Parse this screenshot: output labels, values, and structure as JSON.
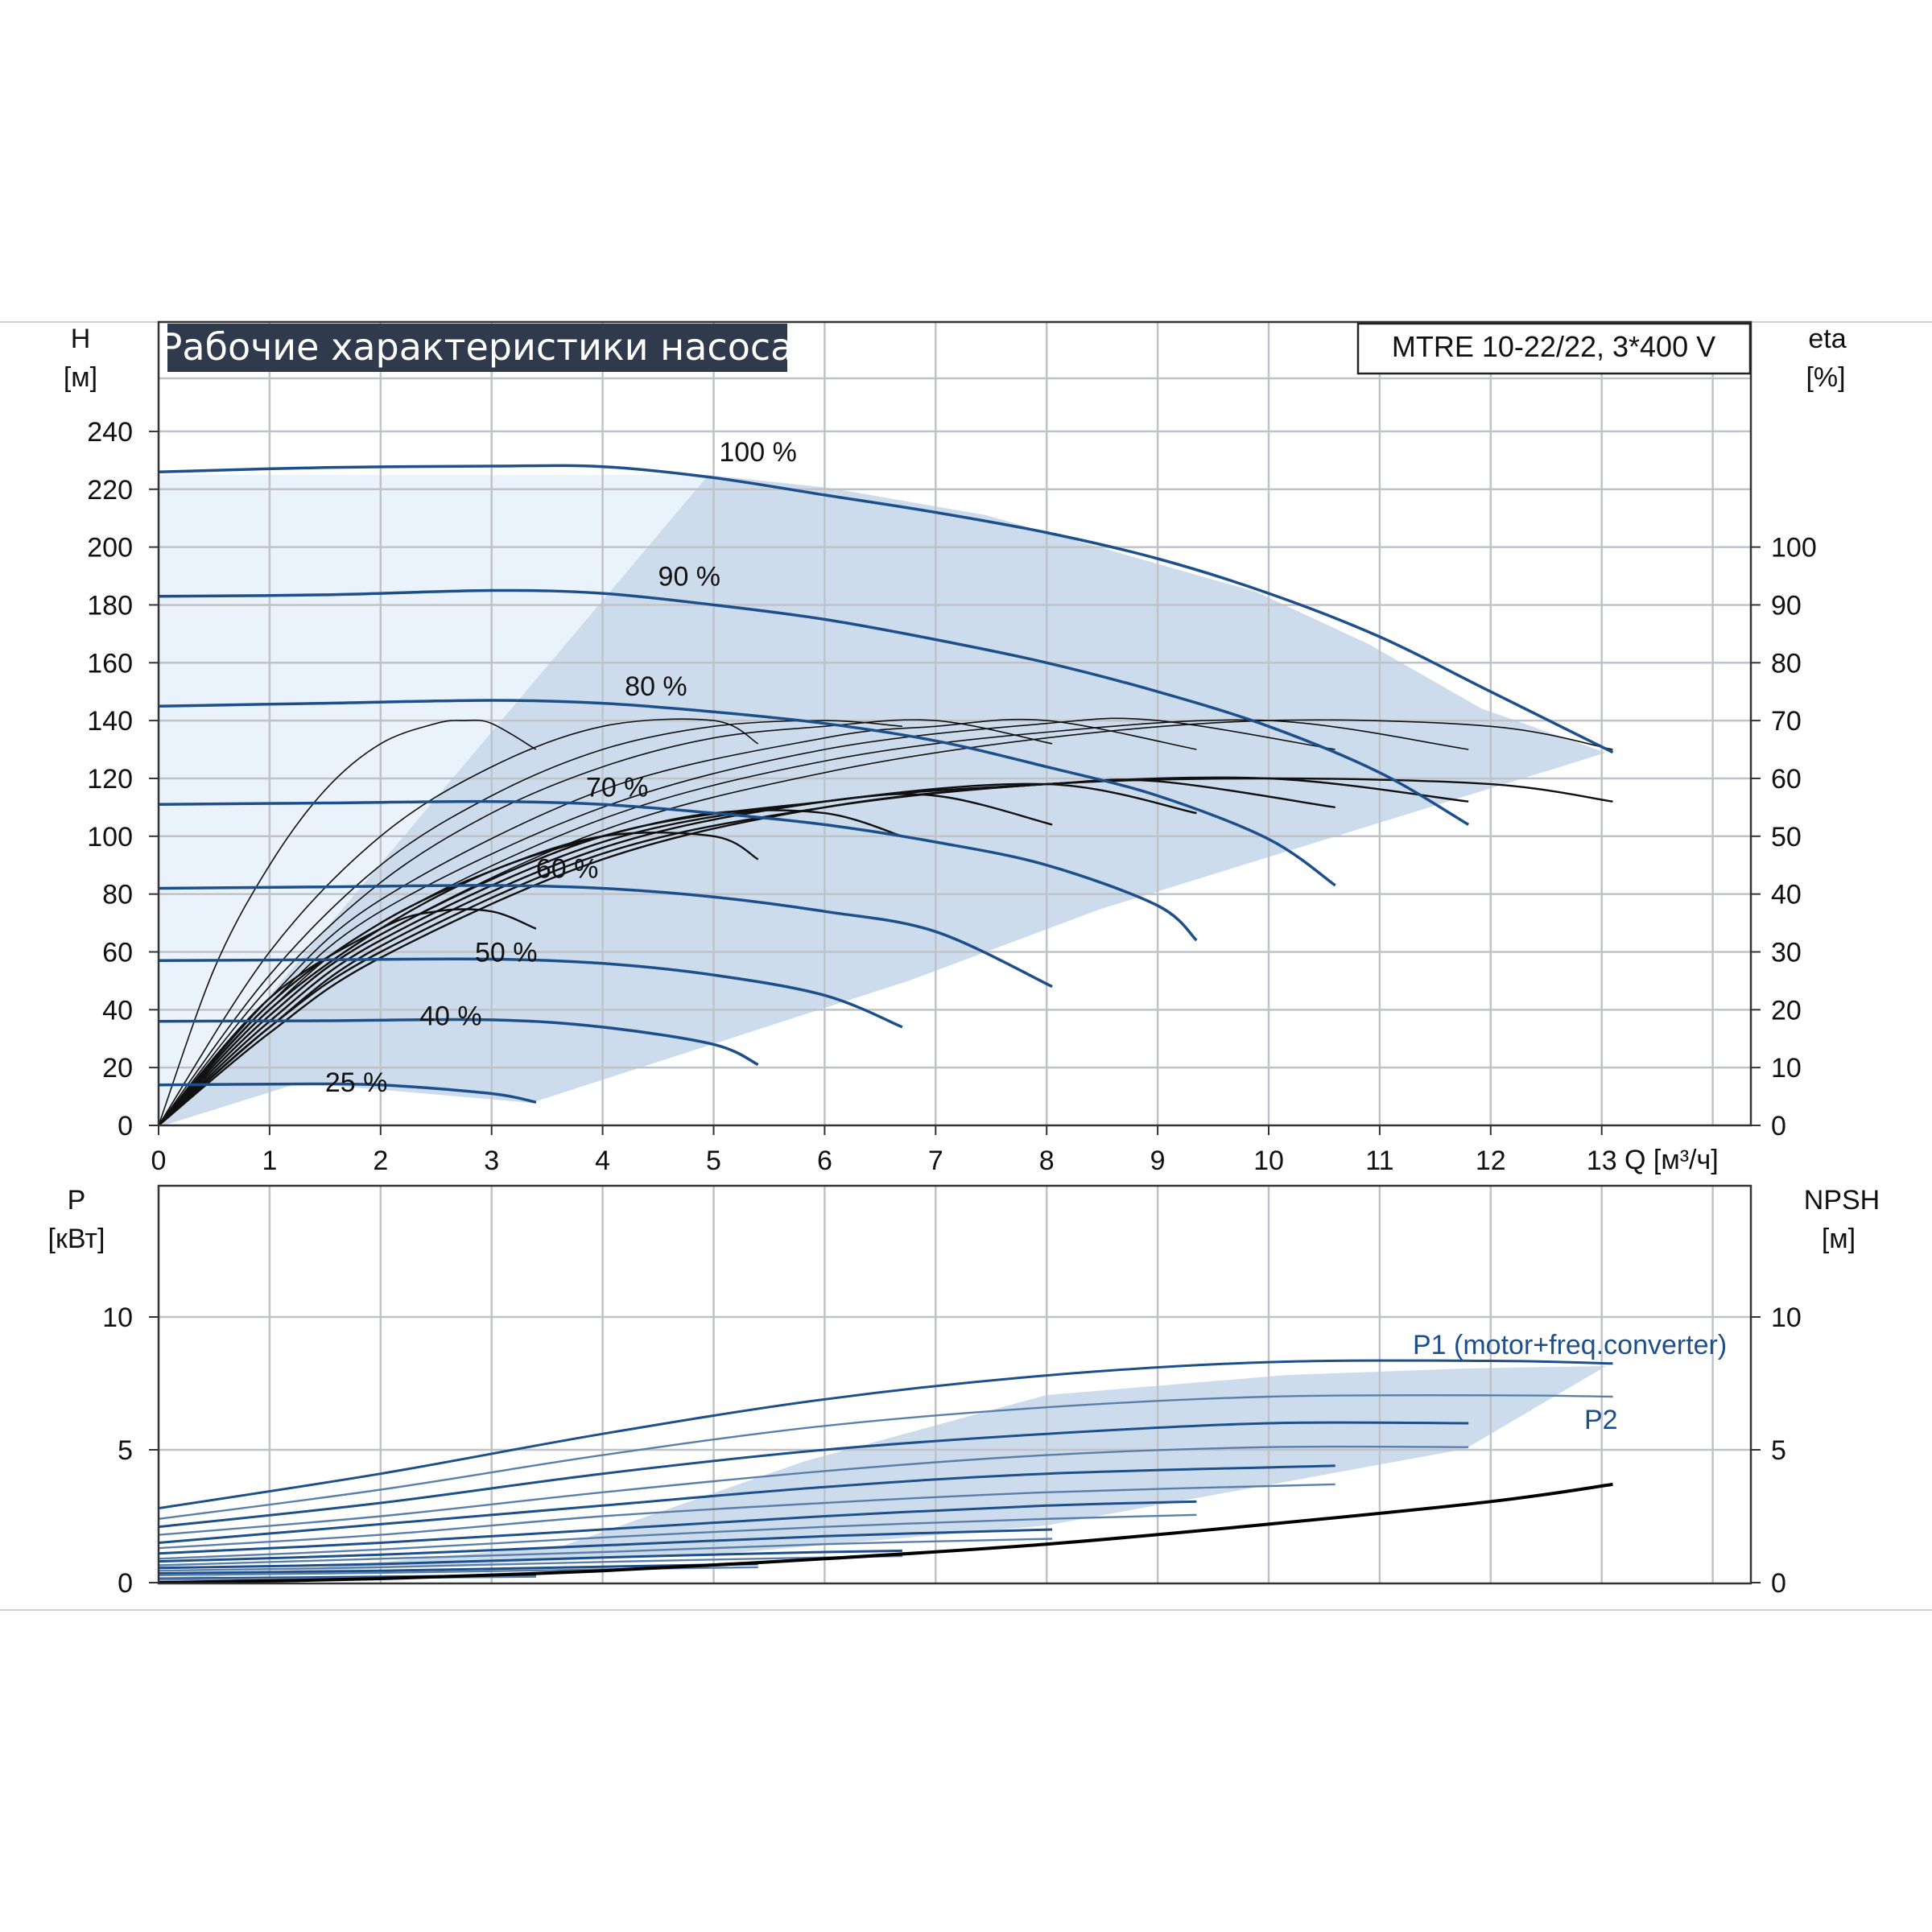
{
  "title": "Рабочие характеристики насоса",
  "model": "MTRE 10-22/22, 3*400 V",
  "colors": {
    "curve": "#1d4f8a",
    "efficiency": "#111111",
    "npsh": "#000000",
    "area_dark": "#cddcec",
    "area_light": "#eaf3fb",
    "grid": "#bfc3c8",
    "title_bg": "#2f3a4c"
  },
  "chart_data": [
    {
      "type": "line",
      "title": "Рабочие характеристики насоса",
      "ylabel": "H",
      "ylabel_unit": "[м]",
      "ylabel_right": "eta",
      "ylabel_right_unit": "[%]",
      "xlabel": "Q [м³/ч]",
      "xlim": [
        0,
        14.5
      ],
      "ylim": [
        0,
        240
      ],
      "ylim_right": [
        0,
        120
      ],
      "x_ticks": [
        "0",
        "1",
        "2",
        "3",
        "4",
        "5",
        "6",
        "7",
        "8",
        "9",
        "10",
        "11",
        "12",
        "13"
      ],
      "y_ticks": [
        "0",
        "20",
        "40",
        "60",
        "80",
        "100",
        "120",
        "140",
        "160",
        "180",
        "200",
        "220",
        "240"
      ],
      "y_ticks_right": [
        "0",
        "10",
        "20",
        "30",
        "40",
        "50",
        "60",
        "70",
        "80",
        "90",
        "100"
      ],
      "grid": true,
      "head_curves": [
        {
          "name": "100 %",
          "label_x": 5.05,
          "label_y": 233,
          "x": [
            0,
            1.5,
            3,
            4,
            5,
            6,
            7,
            8,
            9,
            10,
            11,
            12,
            13.1
          ],
          "y": [
            226,
            227.5,
            228,
            227.8,
            224,
            218,
            212,
            205,
            196,
            184,
            169,
            150,
            129
          ]
        },
        {
          "name": "90 %",
          "label_x": 4.5,
          "label_y": 190,
          "x": [
            0,
            1.5,
            3,
            4,
            5,
            6,
            7,
            8,
            9,
            10,
            11,
            11.8
          ],
          "y": [
            183,
            183.5,
            185,
            184,
            180,
            175,
            168,
            160,
            150,
            138,
            122,
            104
          ]
        },
        {
          "name": "80 %",
          "label_x": 4.2,
          "label_y": 152,
          "x": [
            0,
            1.5,
            3,
            4,
            5,
            6,
            7,
            8,
            9,
            10,
            10.6
          ],
          "y": [
            145,
            146,
            147,
            146,
            143,
            139,
            133,
            124,
            114,
            99,
            83
          ]
        },
        {
          "name": "70 %",
          "label_x": 3.85,
          "label_y": 117,
          "x": [
            0,
            1.5,
            3,
            4,
            5,
            6,
            7,
            8,
            9,
            9.35
          ],
          "y": [
            111,
            111.5,
            112,
            111,
            108,
            104,
            98,
            90,
            76,
            64
          ]
        },
        {
          "name": "60 %",
          "label_x": 3.4,
          "label_y": 89,
          "x": [
            0,
            1.5,
            3,
            4,
            5,
            6,
            7,
            8.05
          ],
          "y": [
            82,
            82.5,
            83,
            82,
            79,
            74,
            67,
            48
          ]
        },
        {
          "name": "50 %",
          "label_x": 2.85,
          "label_y": 60,
          "x": [
            0,
            1.5,
            3,
            4,
            5,
            6,
            6.7
          ],
          "y": [
            57,
            57.3,
            57.5,
            56,
            52,
            45,
            34
          ]
        },
        {
          "name": "40 %",
          "label_x": 2.35,
          "label_y": 38,
          "x": [
            0,
            1.5,
            3,
            4,
            5,
            5.4
          ],
          "y": [
            36,
            36.2,
            36.5,
            34,
            28,
            21
          ]
        },
        {
          "name": "25 %",
          "label_x": 1.5,
          "label_y": 15,
          "x": [
            0,
            1.2,
            2,
            3,
            3.4
          ],
          "y": [
            14,
            14.3,
            14,
            11,
            8
          ]
        }
      ],
      "efficiency_curves": [
        {
          "x": [
            0,
            0.5,
            1,
            1.5,
            2,
            2.5,
            2.75,
            3,
            3.4
          ],
          "y": [
            0,
            27,
            45,
            58,
            66,
            69.5,
            70,
            69.5,
            65
          ]
        },
        {
          "x": [
            0,
            1,
            2,
            3,
            4,
            5,
            5.4
          ],
          "y": [
            0,
            30,
            50,
            62,
            69,
            70,
            66
          ]
        },
        {
          "x": [
            0,
            1,
            2,
            3,
            4,
            5,
            6,
            6.7
          ],
          "y": [
            0,
            26,
            45,
            57,
            65,
            69,
            70,
            69
          ]
        },
        {
          "x": [
            0,
            1,
            2,
            3,
            4,
            5,
            6,
            7,
            8.05
          ],
          "y": [
            0,
            24,
            42,
            54,
            62,
            67,
            69,
            70,
            66
          ]
        },
        {
          "x": [
            0,
            1,
            2,
            4,
            6,
            7,
            8,
            9.35
          ],
          "y": [
            0,
            22,
            39,
            58,
            67,
            69,
            70,
            65
          ]
        },
        {
          "x": [
            0,
            1,
            2,
            4,
            6,
            8,
            9,
            10.6
          ],
          "y": [
            0,
            21,
            37,
            55,
            65,
            69.5,
            70,
            65
          ]
        },
        {
          "x": [
            0,
            1,
            2,
            4,
            6,
            8,
            10,
            11.8
          ],
          "y": [
            0,
            20,
            35,
            53,
            63,
            68,
            70,
            65
          ]
        },
        {
          "x": [
            0,
            1,
            2,
            4,
            6,
            8,
            10,
            12,
            13.1
          ],
          "y": [
            0,
            19,
            33,
            51,
            61,
            67,
            70,
            69,
            65
          ]
        },
        {
          "x": [
            0,
            1,
            2,
            2.5,
            3,
            3.4
          ],
          "y": [
            0,
            22,
            34,
            37,
            37,
            34
          ]
        },
        {
          "x": [
            0,
            1,
            2,
            3,
            4,
            5,
            5.4
          ],
          "y": [
            0,
            21,
            35,
            44,
            50,
            50,
            46
          ]
        },
        {
          "x": [
            0,
            1,
            2,
            3,
            4,
            5,
            6,
            6.7
          ],
          "y": [
            0,
            20,
            34,
            44,
            50,
            54,
            54,
            50
          ]
        },
        {
          "x": [
            0,
            1,
            2,
            4,
            6,
            7,
            8.05
          ],
          "y": [
            0,
            19,
            33,
            50,
            56,
            57,
            52
          ]
        },
        {
          "x": [
            0,
            1,
            2,
            4,
            6,
            8,
            9.35
          ],
          "y": [
            0,
            18,
            32,
            49,
            56,
            59,
            54
          ]
        },
        {
          "x": [
            0,
            1,
            2,
            4,
            6,
            8,
            9,
            10.6
          ],
          "y": [
            0,
            17,
            31,
            48,
            56,
            59,
            59.5,
            55
          ]
        },
        {
          "x": [
            0,
            1,
            2,
            4,
            6,
            8,
            10,
            11.8
          ],
          "y": [
            0,
            17,
            30,
            47,
            55,
            59,
            60,
            56
          ]
        },
        {
          "x": [
            0,
            1,
            2,
            4,
            6,
            8,
            10,
            12,
            13.1
          ],
          "y": [
            0,
            16,
            29,
            46,
            55,
            59,
            60,
            59,
            56
          ]
        }
      ]
    },
    {
      "type": "line",
      "ylabel": "P",
      "ylabel_unit": "[кВт]",
      "ylabel_right": "NPSH",
      "ylabel_right_unit": "[м]",
      "xlim": [
        0,
        14.5
      ],
      "ylim": [
        0,
        15
      ],
      "y_ticks": [
        "0",
        "5",
        "10"
      ],
      "y_ticks_right": [
        "0",
        "5",
        "10"
      ],
      "grid": true,
      "series_labels": {
        "p1": "P1 (motor+freq.converter)",
        "p2": "P2"
      },
      "power_curves": [
        {
          "series": "P1",
          "x": [
            0,
            2,
            4,
            6,
            8,
            10,
            12,
            13.1
          ],
          "y": [
            2.8,
            4.1,
            5.6,
            6.9,
            7.8,
            8.3,
            8.35,
            8.25
          ]
        },
        {
          "series": "P2",
          "x": [
            0,
            2,
            4,
            6,
            8,
            10,
            12,
            13.1
          ],
          "y": [
            2.4,
            3.5,
            4.8,
            5.9,
            6.6,
            7.0,
            7.05,
            7.0
          ]
        },
        {
          "series": "P1",
          "x": [
            0,
            2,
            4,
            6,
            8,
            10,
            11.8
          ],
          "y": [
            2.1,
            3.0,
            4.1,
            5.0,
            5.6,
            6.0,
            6.0
          ]
        },
        {
          "series": "P2",
          "x": [
            0,
            2,
            4,
            6,
            8,
            10,
            11.8
          ],
          "y": [
            1.8,
            2.5,
            3.4,
            4.2,
            4.8,
            5.1,
            5.1
          ]
        },
        {
          "series": "P1",
          "x": [
            0,
            2,
            4,
            6,
            8,
            10.6
          ],
          "y": [
            1.5,
            2.2,
            2.9,
            3.6,
            4.1,
            4.4
          ]
        },
        {
          "series": "P2",
          "x": [
            0,
            2,
            4,
            6,
            8,
            10.6
          ],
          "y": [
            1.3,
            1.8,
            2.5,
            3.0,
            3.4,
            3.7
          ]
        },
        {
          "series": "P1",
          "x": [
            0,
            2,
            4,
            6,
            8,
            9.35
          ],
          "y": [
            1.1,
            1.5,
            2.0,
            2.5,
            2.9,
            3.05
          ]
        },
        {
          "series": "P2",
          "x": [
            0,
            2,
            4,
            6,
            8,
            9.35
          ],
          "y": [
            0.9,
            1.25,
            1.7,
            2.1,
            2.4,
            2.55
          ]
        },
        {
          "series": "P1",
          "x": [
            0,
            2,
            4,
            6,
            8.05
          ],
          "y": [
            0.8,
            1.05,
            1.4,
            1.75,
            2.0
          ]
        },
        {
          "series": "P2",
          "x": [
            0,
            2,
            4,
            6,
            8.05
          ],
          "y": [
            0.65,
            0.9,
            1.15,
            1.45,
            1.65
          ]
        },
        {
          "series": "P1",
          "x": [
            0,
            2,
            4,
            6,
            6.7
          ],
          "y": [
            0.55,
            0.7,
            0.95,
            1.15,
            1.2
          ]
        },
        {
          "series": "P2",
          "x": [
            0,
            2,
            4,
            6,
            6.7
          ],
          "y": [
            0.45,
            0.58,
            0.78,
            0.95,
            1.0
          ]
        },
        {
          "series": "P1",
          "x": [
            0,
            2,
            4,
            5.4
          ],
          "y": [
            0.35,
            0.45,
            0.6,
            0.7
          ]
        },
        {
          "series": "P2",
          "x": [
            0,
            2,
            4,
            5.4
          ],
          "y": [
            0.28,
            0.37,
            0.5,
            0.58
          ]
        },
        {
          "series": "P1",
          "x": [
            0,
            1.5,
            3.4
          ],
          "y": [
            0.15,
            0.2,
            0.28
          ]
        },
        {
          "series": "P2",
          "x": [
            0,
            1.5,
            3.4
          ],
          "y": [
            0.12,
            0.16,
            0.22
          ]
        }
      ],
      "npsh_curve": {
        "x": [
          0,
          2,
          4,
          6,
          8,
          10,
          12,
          13.1
        ],
        "y": [
          0.0,
          0.15,
          0.45,
          0.9,
          1.45,
          2.2,
          3.05,
          3.7
        ]
      }
    }
  ]
}
